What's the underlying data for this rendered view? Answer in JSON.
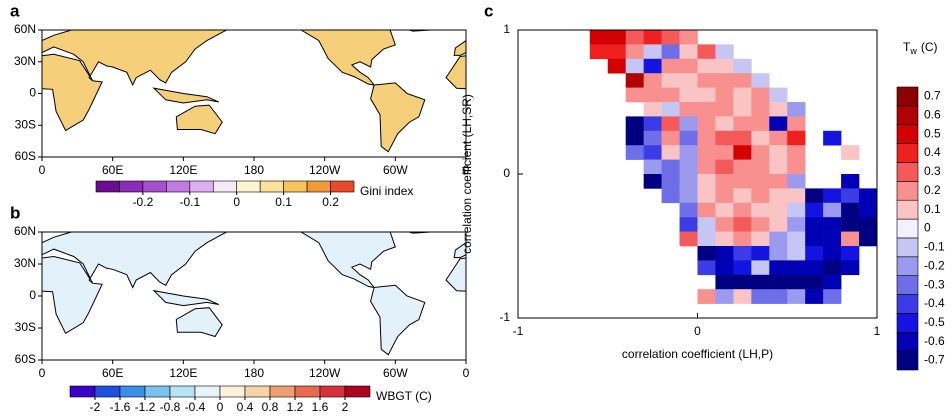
{
  "panels": {
    "a": {
      "type": "map",
      "label": "a",
      "xticks": [
        0,
        {
          "value": 60,
          "label": "60E"
        },
        {
          "value": 120,
          "label": "120E"
        },
        180,
        {
          "value": 240,
          "label": "120W"
        },
        {
          "value": 300,
          "label": "60W"
        },
        {
          "value": 360,
          "label": "0"
        }
      ],
      "yticks": [
        {
          "value": 60,
          "label": "60N"
        },
        {
          "value": 30,
          "label": "30N"
        },
        0,
        {
          "value": -30,
          "label": "30S"
        },
        {
          "value": -60,
          "label": "60S"
        }
      ],
      "xlim": [
        0,
        360
      ],
      "ylim": [
        -60,
        60
      ],
      "land_color": "#f6cf7a",
      "colorbar": {
        "title": "Gini index",
        "lim": [
          -0.3,
          0.25
        ],
        "ticks": [
          -0.2,
          -0.1,
          0,
          0.1,
          0.2
        ],
        "colors": [
          "#6a0d91",
          "#8a2cb5",
          "#a64fd0",
          "#c07ce0",
          "#dcb0ef",
          "#f4eaf7",
          "#fdf4d0",
          "#fbe19a",
          "#f7c35a",
          "#f29a3a",
          "#e84a2a"
        ]
      }
    },
    "b": {
      "type": "map",
      "label": "b",
      "xticks": [
        0,
        {
          "value": 60,
          "label": "60E"
        },
        {
          "value": 120,
          "label": "120E"
        },
        180,
        {
          "value": 240,
          "label": "120W"
        },
        {
          "value": 300,
          "label": "60W"
        },
        {
          "value": 360,
          "label": "0"
        }
      ],
      "yticks": [
        {
          "value": 60,
          "label": "60N"
        },
        {
          "value": 30,
          "label": "30N"
        },
        0,
        {
          "value": -30,
          "label": "30S"
        },
        {
          "value": -60,
          "label": "60S"
        }
      ],
      "xlim": [
        0,
        360
      ],
      "ylim": [
        -60,
        60
      ],
      "land_color": "#e3f2fa",
      "colorbar": {
        "title": "WBGT (C)",
        "lim": [
          -2.4,
          2.4
        ],
        "ticks": [
          -2,
          -1.6,
          -1.2,
          -0.8,
          -0.4,
          0,
          0.4,
          0.8,
          1.2,
          1.6,
          2
        ],
        "colors": [
          "#3b00c8",
          "#2050e0",
          "#3a8fe8",
          "#7cc0f0",
          "#b7e3f5",
          "#e6f5fb",
          "#fdf0dc",
          "#f8d3a8",
          "#f0a070",
          "#e86a50",
          "#d8303a",
          "#b00020"
        ]
      }
    },
    "c": {
      "type": "heatmap",
      "label": "c",
      "x_label": "correlation coefficient (LH,P)",
      "y_label": "correlation coefficient (LH,SR)",
      "xlim": [
        -1,
        1
      ],
      "ylim": [
        -1,
        1
      ],
      "xticks": [
        -1,
        0,
        1
      ],
      "yticks": [
        -1,
        0,
        1
      ],
      "colorbar": {
        "title": "T",
        "title_sub": "w",
        "title_unit": "(C)",
        "ticks": [
          -0.7,
          -0.6,
          -0.5,
          -0.4,
          -0.3,
          -0.2,
          -0.1,
          0,
          0.1,
          0.2,
          0.3,
          0.4,
          0.5,
          0.6,
          0.7
        ],
        "colors": [
          "#000080",
          "#0000b4",
          "#1414e0",
          "#3c3ce6",
          "#6e6ee8",
          "#9a9aee",
          "#c6c6f5",
          "#f3f0ff",
          "#fbc4c4",
          "#f89090",
          "#f55a5a",
          "#f02020",
          "#d40000",
          "#b00000",
          "#8b0000"
        ]
      },
      "values": [
        [
          null,
          null,
          null,
          null,
          0.5,
          0.5,
          0.3,
          0.4,
          0.3,
          0.2,
          null,
          null,
          null,
          null,
          null,
          null,
          null,
          null,
          null,
          null
        ],
        [
          null,
          null,
          null,
          null,
          0.4,
          0.4,
          0.2,
          -0.1,
          -0.3,
          0.1,
          0.3,
          -0.1,
          null,
          null,
          null,
          null,
          null,
          null,
          null,
          null
        ],
        [
          null,
          null,
          null,
          null,
          null,
          0.5,
          -0.1,
          -0.5,
          0.2,
          0.2,
          0.1,
          0.1,
          -0.1,
          null,
          null,
          null,
          null,
          null,
          null,
          null
        ],
        [
          null,
          null,
          null,
          null,
          null,
          null,
          0.6,
          0.2,
          0.1,
          0.1,
          0.2,
          0.2,
          0.2,
          -0.1,
          null,
          null,
          null,
          null,
          null,
          null
        ],
        [
          null,
          null,
          null,
          null,
          null,
          null,
          0.2,
          0.2,
          0.2,
          0.1,
          0.1,
          0.2,
          0.1,
          0.2,
          -0.1,
          null,
          null,
          null,
          null,
          null
        ],
        [
          null,
          null,
          null,
          null,
          null,
          null,
          null,
          0.1,
          -0.1,
          0.2,
          0.2,
          0.2,
          0.1,
          0.2,
          0.1,
          -0.2,
          null,
          null,
          null,
          null
        ],
        [
          null,
          null,
          null,
          null,
          null,
          null,
          -0.7,
          -0.4,
          0.3,
          -0.2,
          0.2,
          0.1,
          0.2,
          0.2,
          -0.6,
          0.2,
          null,
          null,
          null,
          null
        ],
        [
          null,
          null,
          null,
          null,
          null,
          null,
          -0.7,
          -0.3,
          0.2,
          -0.3,
          0.2,
          0.3,
          0.3,
          0.1,
          0.2,
          0.4,
          null,
          -0.5,
          null,
          null
        ],
        [
          null,
          null,
          null,
          null,
          null,
          null,
          -0.3,
          -0.4,
          0.1,
          -0.2,
          0.2,
          0.2,
          0.5,
          0.2,
          0.1,
          0.2,
          null,
          null,
          0.1,
          null
        ],
        [
          null,
          null,
          null,
          null,
          null,
          null,
          null,
          -0.2,
          -0.3,
          -0.2,
          0.2,
          0.3,
          0.2,
          0.2,
          0.1,
          0.2,
          null,
          null,
          null,
          null
        ],
        [
          null,
          null,
          null,
          null,
          null,
          null,
          null,
          -0.7,
          -0.3,
          -0.2,
          0.1,
          0.2,
          0.2,
          0.2,
          0.2,
          -0.2,
          null,
          null,
          -0.6,
          null
        ],
        [
          null,
          null,
          null,
          null,
          null,
          null,
          null,
          null,
          -0.3,
          -0.2,
          0.1,
          0.2,
          0.1,
          0.2,
          0.1,
          0.1,
          -0.7,
          -0.5,
          -0.4,
          -0.6
        ],
        [
          null,
          null,
          null,
          null,
          null,
          null,
          null,
          null,
          null,
          -0.3,
          0.2,
          0.1,
          0.2,
          0.1,
          0.1,
          -0.1,
          -0.5,
          -0.2,
          -0.7,
          -0.6
        ],
        [
          null,
          null,
          null,
          null,
          null,
          null,
          null,
          null,
          null,
          -0.4,
          -0.1,
          0.2,
          0.3,
          0.2,
          0.1,
          -0.2,
          -0.6,
          -0.6,
          -0.7,
          -0.7
        ],
        [
          null,
          null,
          null,
          null,
          null,
          null,
          null,
          null,
          null,
          0.3,
          -0.1,
          0.1,
          0.2,
          0.1,
          -0.2,
          -0.1,
          -0.6,
          -0.6,
          0.2,
          -0.7
        ],
        [
          null,
          null,
          null,
          null,
          null,
          null,
          null,
          null,
          null,
          null,
          -0.7,
          -0.6,
          -0.4,
          -0.5,
          -0.2,
          -0.1,
          -0.5,
          -0.6,
          -0.5,
          null
        ],
        [
          null,
          null,
          null,
          null,
          null,
          null,
          null,
          null,
          null,
          null,
          -0.4,
          -0.6,
          -0.5,
          -0.1,
          -0.6,
          -0.6,
          -0.6,
          -0.7,
          -0.6,
          null
        ],
        [
          null,
          null,
          null,
          null,
          null,
          null,
          null,
          null,
          null,
          null,
          null,
          -0.7,
          -0.7,
          -0.7,
          -0.7,
          -0.7,
          -0.7,
          -0.6,
          null,
          null
        ],
        [
          null,
          null,
          null,
          null,
          null,
          null,
          null,
          null,
          null,
          null,
          0.2,
          -0.2,
          0.1,
          -0.3,
          -0.3,
          -0.2,
          -0.6,
          -0.3,
          null,
          null
        ],
        [
          null,
          null,
          null,
          null,
          null,
          null,
          null,
          null,
          null,
          null,
          null,
          null,
          null,
          null,
          null,
          null,
          null,
          null,
          null,
          null
        ]
      ]
    }
  }
}
